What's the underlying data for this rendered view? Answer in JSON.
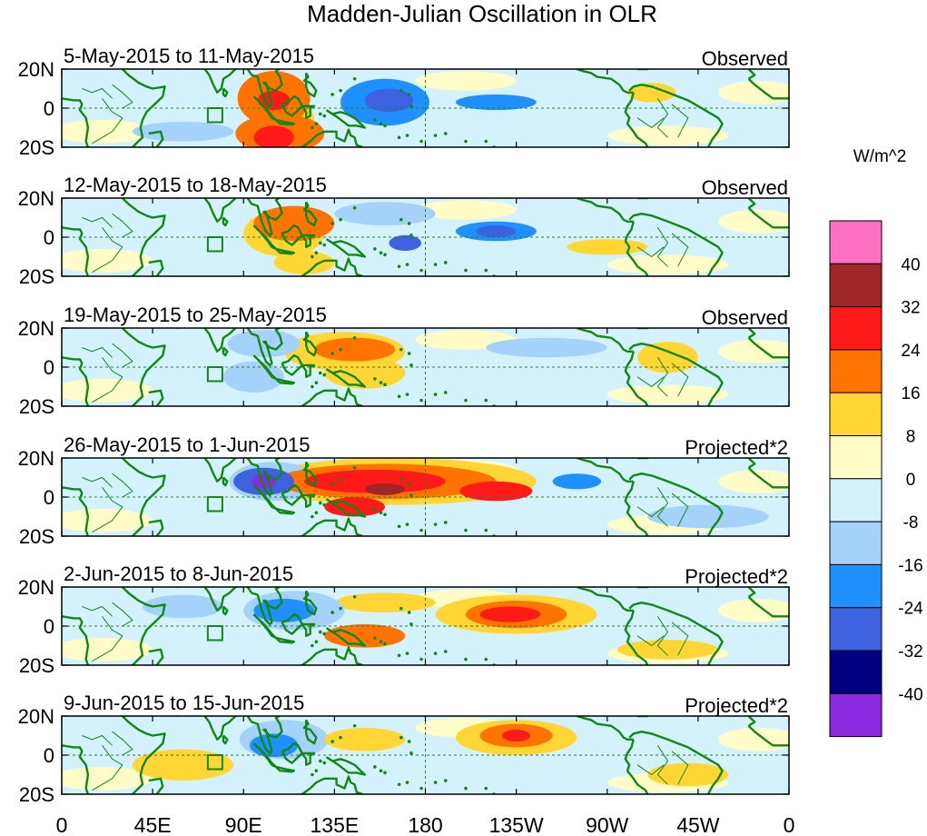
{
  "title": "Madden-Julian Oscillation in OLR",
  "units_label": "W/m^2",
  "panels": [
    {
      "date_range": "5-May-2015 to 11-May-2015",
      "kind": "Observed",
      "blobs": [
        {
          "lon": 105,
          "lat": 5,
          "rx": 18,
          "ry": 14,
          "level": 16
        },
        {
          "lon": 105,
          "lat": 4,
          "rx": 8,
          "ry": 5,
          "level": 24
        },
        {
          "lon": 108,
          "lat": -13,
          "rx": 22,
          "ry": 10,
          "level": 16
        },
        {
          "lon": 105,
          "lat": -15,
          "rx": 10,
          "ry": 6,
          "level": 24
        },
        {
          "lon": 110,
          "lat": -5,
          "rx": 15,
          "ry": 8,
          "level": 8
        },
        {
          "lon": 160,
          "lat": 3,
          "rx": 22,
          "ry": 12,
          "level": -16
        },
        {
          "lon": 162,
          "lat": 4,
          "rx": 12,
          "ry": 6,
          "level": -24
        },
        {
          "lon": 215,
          "lat": 3,
          "rx": 20,
          "ry": 4,
          "level": -16
        },
        {
          "lon": 292,
          "lat": 8,
          "rx": 12,
          "ry": 5,
          "level": 8
        },
        {
          "lon": 60,
          "lat": -12,
          "rx": 25,
          "ry": 5,
          "level": -8
        }
      ]
    },
    {
      "date_range": "12-May-2015 to 18-May-2015",
      "kind": "Observed",
      "blobs": [
        {
          "lon": 115,
          "lat": 7,
          "rx": 20,
          "ry": 9,
          "level": 16
        },
        {
          "lon": 110,
          "lat": 2,
          "rx": 20,
          "ry": 12,
          "level": 8
        },
        {
          "lon": 120,
          "lat": -13,
          "rx": 15,
          "ry": 6,
          "level": 8
        },
        {
          "lon": 160,
          "lat": 12,
          "rx": 25,
          "ry": 6,
          "level": -8
        },
        {
          "lon": 215,
          "lat": 3,
          "rx": 20,
          "ry": 5,
          "level": -16
        },
        {
          "lon": 215,
          "lat": 3,
          "rx": 10,
          "ry": 3,
          "level": -24
        },
        {
          "lon": 170,
          "lat": -3,
          "rx": 8,
          "ry": 4,
          "level": -24
        },
        {
          "lon": 270,
          "lat": -5,
          "rx": 20,
          "ry": 4,
          "level": 8
        }
      ]
    },
    {
      "date_range": "19-May-2015 to 25-May-2015",
      "kind": "Observed",
      "blobs": [
        {
          "lon": 140,
          "lat": 8,
          "rx": 30,
          "ry": 10,
          "level": 8
        },
        {
          "lon": 145,
          "lat": 9,
          "rx": 20,
          "ry": 6,
          "level": 16
        },
        {
          "lon": 150,
          "lat": -3,
          "rx": 20,
          "ry": 8,
          "level": 8
        },
        {
          "lon": 100,
          "lat": 12,
          "rx": 18,
          "ry": 7,
          "level": -8
        },
        {
          "lon": 95,
          "lat": -5,
          "rx": 15,
          "ry": 8,
          "level": -8
        },
        {
          "lon": 240,
          "lat": 10,
          "rx": 30,
          "ry": 5,
          "level": -8
        },
        {
          "lon": 300,
          "lat": 5,
          "rx": 15,
          "ry": 8,
          "level": 8
        }
      ]
    },
    {
      "date_range": "26-May-2015 to 1-Jun-2015",
      "kind": "Projected*2",
      "blobs": [
        {
          "lon": 165,
          "lat": 8,
          "rx": 70,
          "ry": 12,
          "level": 8
        },
        {
          "lon": 160,
          "lat": 8,
          "rx": 55,
          "ry": 9,
          "level": 16
        },
        {
          "lon": 155,
          "lat": 8,
          "rx": 35,
          "ry": 6,
          "level": 24
        },
        {
          "lon": 160,
          "lat": 4,
          "rx": 10,
          "ry": 3,
          "level": 32
        },
        {
          "lon": 145,
          "lat": -5,
          "rx": 15,
          "ry": 5,
          "level": 24
        },
        {
          "lon": 215,
          "lat": 3,
          "rx": 18,
          "ry": 5,
          "level": 24
        },
        {
          "lon": 105,
          "lat": 8,
          "rx": 22,
          "ry": 10,
          "level": -8
        },
        {
          "lon": 100,
          "lat": 8,
          "rx": 15,
          "ry": 7,
          "level": -24
        },
        {
          "lon": 100,
          "lat": 8,
          "rx": 6,
          "ry": 4,
          "level": -40
        },
        {
          "lon": 255,
          "lat": 8,
          "rx": 12,
          "ry": 4,
          "level": -16
        },
        {
          "lon": 320,
          "lat": -10,
          "rx": 30,
          "ry": 6,
          "level": -8
        }
      ]
    },
    {
      "date_range": "2-Jun-2015 to 8-Jun-2015",
      "kind": "Projected*2",
      "blobs": [
        {
          "lon": 225,
          "lat": 6,
          "rx": 40,
          "ry": 10,
          "level": 8
        },
        {
          "lon": 225,
          "lat": 6,
          "rx": 25,
          "ry": 7,
          "level": 16
        },
        {
          "lon": 222,
          "lat": 6,
          "rx": 15,
          "ry": 4,
          "level": 24
        },
        {
          "lon": 160,
          "lat": 12,
          "rx": 25,
          "ry": 5,
          "level": 8
        },
        {
          "lon": 150,
          "lat": -5,
          "rx": 20,
          "ry": 6,
          "level": 16
        },
        {
          "lon": 115,
          "lat": 8,
          "rx": 25,
          "ry": 10,
          "level": -8
        },
        {
          "lon": 110,
          "lat": 8,
          "rx": 15,
          "ry": 6,
          "level": -16
        },
        {
          "lon": 60,
          "lat": 10,
          "rx": 20,
          "ry": 6,
          "level": -8
        },
        {
          "lon": 300,
          "lat": -12,
          "rx": 25,
          "ry": 5,
          "level": 8
        }
      ]
    },
    {
      "date_range": "9-Jun-2015 to 15-Jun-2015",
      "kind": "Projected*2",
      "blobs": [
        {
          "lon": 225,
          "lat": 9,
          "rx": 30,
          "ry": 9,
          "level": 8
        },
        {
          "lon": 225,
          "lat": 10,
          "rx": 18,
          "ry": 6,
          "level": 16
        },
        {
          "lon": 225,
          "lat": 10,
          "rx": 7,
          "ry": 3,
          "level": 24
        },
        {
          "lon": 110,
          "lat": 8,
          "rx": 22,
          "ry": 10,
          "level": -8
        },
        {
          "lon": 105,
          "lat": 5,
          "rx": 12,
          "ry": 6,
          "level": -16
        },
        {
          "lon": 60,
          "lat": -5,
          "rx": 25,
          "ry": 8,
          "level": 8
        },
        {
          "lon": 310,
          "lat": -10,
          "rx": 20,
          "ry": 6,
          "level": 8
        },
        {
          "lon": 150,
          "lat": 8,
          "rx": 20,
          "ry": 6,
          "level": 8
        }
      ]
    }
  ],
  "lat_labels": [
    "20N",
    "0",
    "20S"
  ],
  "lon_ticks": [
    {
      "lon": 0,
      "label": "0"
    },
    {
      "lon": 45,
      "label": "45E"
    },
    {
      "lon": 90,
      "label": "90E"
    },
    {
      "lon": 135,
      "label": "135E"
    },
    {
      "lon": 180,
      "label": "180"
    },
    {
      "lon": 225,
      "label": "135W"
    },
    {
      "lon": 270,
      "label": "90W"
    },
    {
      "lon": 315,
      "label": "45W"
    },
    {
      "lon": 360,
      "label": "0"
    }
  ],
  "colorbar": {
    "labels": [
      "40",
      "32",
      "24",
      "16",
      "8",
      "0",
      "-8",
      "-16",
      "-24",
      "-32",
      "-40"
    ],
    "levels": [
      {
        "min": 40,
        "color": "#ff6fc1"
      },
      {
        "min": 32,
        "color": "#9e2626"
      },
      {
        "min": 24,
        "color": "#ff1a1a"
      },
      {
        "min": 16,
        "color": "#ff7300"
      },
      {
        "min": 8,
        "color": "#ffd633"
      },
      {
        "min": 0,
        "color": "#fffcc8"
      },
      {
        "min": -8,
        "color": "#d4f2fc"
      },
      {
        "min": -16,
        "color": "#a4d2fb"
      },
      {
        "min": -24,
        "color": "#1e90ff"
      },
      {
        "min": -32,
        "color": "#3d62e0"
      },
      {
        "min": -40,
        "color": "#000080"
      },
      {
        "min": -999,
        "color": "#8a2be2"
      }
    ]
  },
  "colors": {
    "coast": "#118811",
    "background_field": "#d4f2fc"
  }
}
